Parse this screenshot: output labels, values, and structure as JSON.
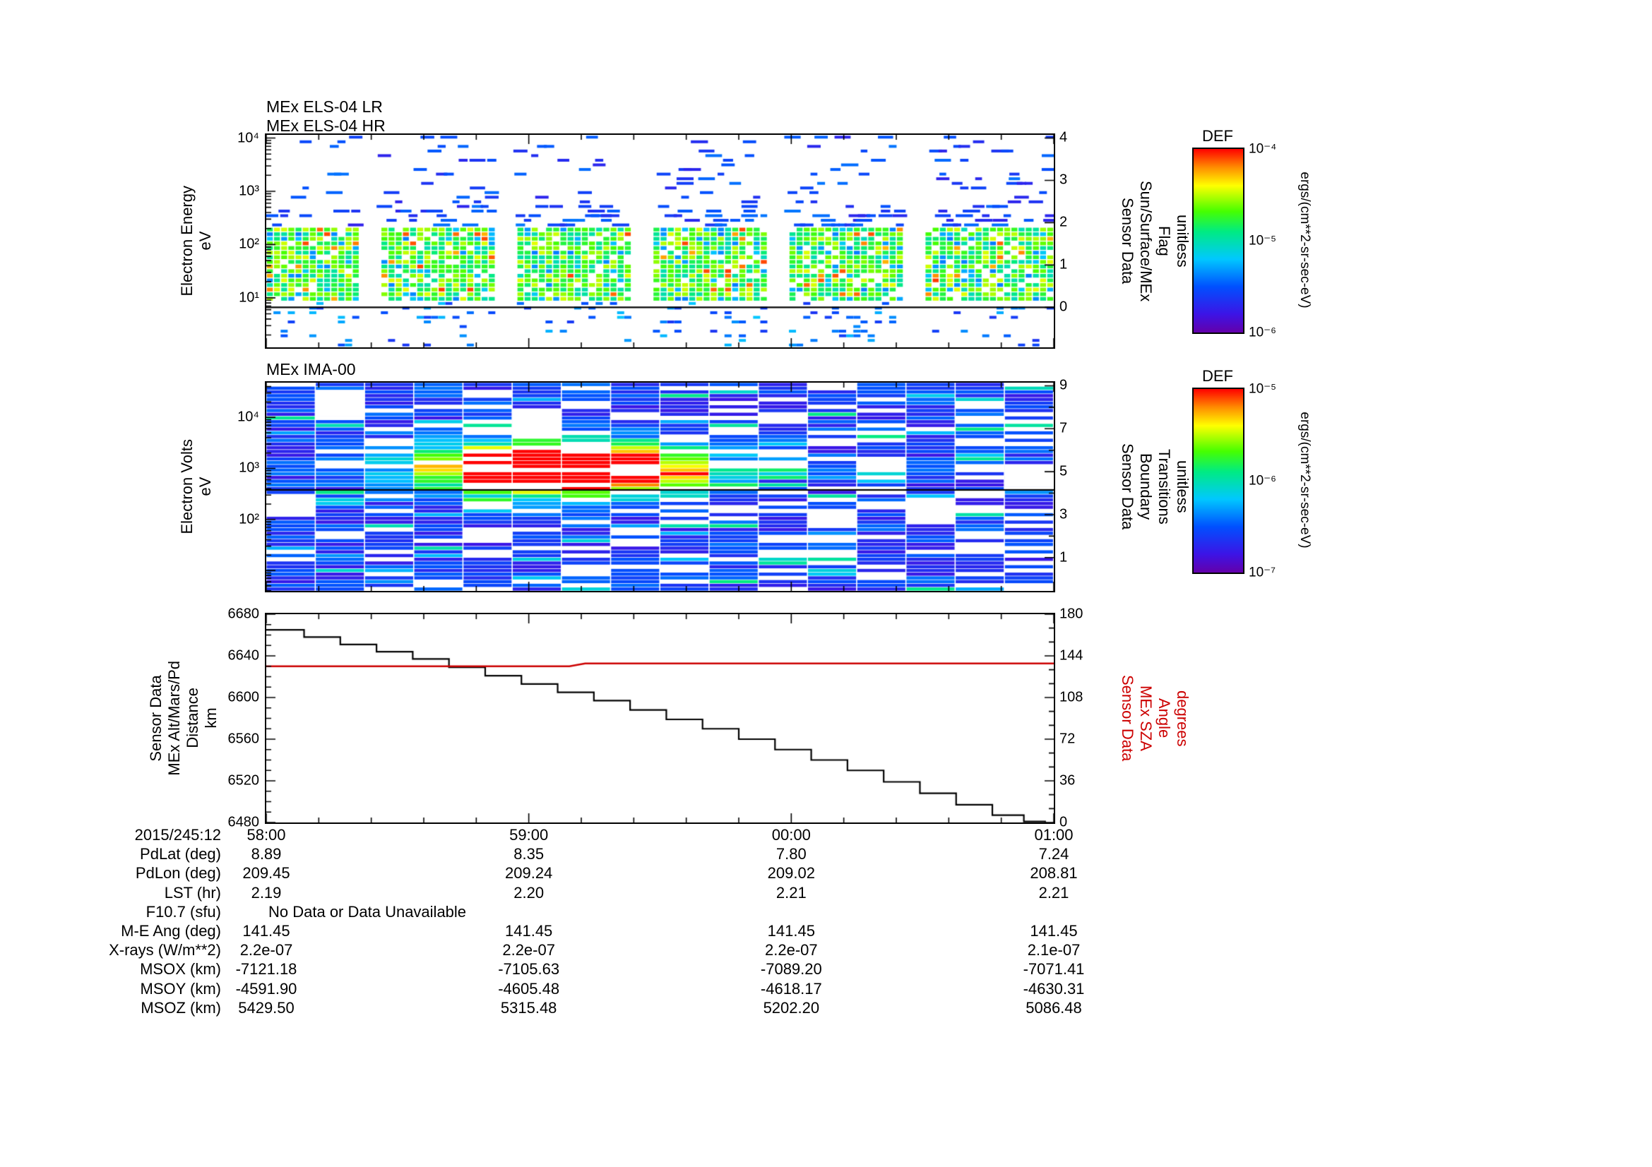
{
  "titles": {
    "els_lr": "MEx ELS-04 LR",
    "els_hr": "MEx ELS-04 HR",
    "ima": "MEx IMA-00"
  },
  "axis_labels": {
    "els_left": "Electron Energy\neV",
    "ima_left": "Electron Volts\neV",
    "alt_left": "Sensor Data\nMEx Alt/Mars/Pd\nDistance\nkm",
    "els_right": "Sensor Data\nSun/Surface/MEx\nFlag\nunitless",
    "ima_right": "Sensor Data\nBoundary\nTransitions\nunitless",
    "alt_right": "Sensor Data\nMEx SZA\nAngle\ndegrees"
  },
  "colors": {
    "background": "#ffffff",
    "frame": "#000000",
    "altitude_line": "#000000",
    "sza_line": "#cc0000"
  },
  "colorbars": [
    {
      "title": "DEF",
      "unit": "ergs/(cm**2-sr-sec-eV)",
      "tick_labels": [
        "10⁻⁴",
        "10⁻⁵",
        "10⁻⁶"
      ],
      "gradient": [
        "#ff0000 0%",
        "#ff8c00 10%",
        "#ffff00 20%",
        "#46ff00 34%",
        "#00eb82 45%",
        "#00c8ff 60%",
        "#0050ff 75%",
        "#3c14e6 90%",
        "#6400aa 100%"
      ]
    },
    {
      "title": "DEF",
      "unit": "ergs/(cm**2-sr-sec-eV)",
      "tick_labels": [
        "10⁻⁵",
        "10⁻⁶",
        "10⁻⁷"
      ],
      "gradient": [
        "#ff0000 0%",
        "#ff8c00 10%",
        "#ffff00 20%",
        "#46ff00 34%",
        "#00eb82 45%",
        "#00c8ff 60%",
        "#0050ff 75%",
        "#3c14e6 90%",
        "#6400aa 100%"
      ]
    }
  ],
  "chart_data": [
    {
      "type": "heatmap",
      "name": "els",
      "title": "MEx ELS-04 LR / MEx ELS-04 HR electron energy spectrogram",
      "x_ticks": [
        "58:00",
        "59:00",
        "00:00",
        "01:00"
      ],
      "x_start_label": "2015/245:12",
      "y_axis": {
        "scale": "log",
        "unit": "eV",
        "top_logE": 4.06,
        "bottom_logE": 0.07,
        "tick_labels": [
          {
            "text": "10⁴",
            "logE": 4
          },
          {
            "text": "10³",
            "logE": 3
          },
          {
            "text": "10²",
            "logE": 2
          },
          {
            "text": "10¹",
            "logE": 1
          }
        ]
      },
      "right_axis": {
        "label": "Sun/Surface/MEx Flag (unitless)",
        "top_value": 4.075,
        "bottom_value": -0.945,
        "tick_values": [
          4,
          3,
          2,
          1,
          0
        ]
      },
      "flag_line_value": 0,
      "intensity_unit": "ergs/(cm**2-sr-sec-eV)",
      "intensity_range_log10": [
        -6,
        -4
      ],
      "summary": "Dense green-yellow electron flux band between ~9 and ~200 eV with occasional orange-red patches; sparse blue dashes up to 10^4 eV and below ~7 eV; periodic white data gaps; black flag line at flag=0.",
      "render": {
        "seed": 42,
        "time_bins": 110,
        "energy_bins": 46,
        "gaps": [
          [
            0.122,
            0.148
          ],
          [
            0.295,
            0.318
          ],
          [
            0.468,
            0.492
          ],
          [
            0.64,
            0.664
          ],
          [
            0.812,
            0.836
          ]
        ],
        "band_logE": [
          0.95,
          2.33
        ],
        "band_fill": 0.88,
        "sparse_above_fill": 0.22,
        "sparse_high_fill": 0.07,
        "sparse_below_fill": 0.13
      }
    },
    {
      "type": "heatmap",
      "name": "ima",
      "title": "MEx IMA-00 ion spectrogram",
      "x_ticks": [
        "58:00",
        "59:00",
        "00:00",
        "01:00"
      ],
      "y_axis": {
        "scale": "log",
        "unit": "eV",
        "top_logE": 4.68,
        "bottom_logE": 0.6,
        "tick_labels": [
          {
            "text": "10⁴",
            "logE": 4
          },
          {
            "text": "10³",
            "logE": 3
          },
          {
            "text": "10²",
            "logE": 2
          }
        ]
      },
      "right_axis": {
        "label": "Boundary Transitions (unitless)",
        "top_value": 9.147,
        "bottom_value": -0.553,
        "tick_values": [
          9,
          7,
          5,
          3,
          1
        ]
      },
      "line_value": 4.15,
      "intensity_unit": "ergs/(cm**2-sr-sec-eV)",
      "intensity_range_log10": [
        -7,
        -5
      ],
      "summary": "Blocky blue-violet background flux in ~16 time columns with scattered white gaps; intense red-orange enhancement near 10^3 eV between ~12:58:45 and ~12:59:30 with yellow-green fringe; black horizontal line across panel.",
      "render": {
        "seed": 7,
        "time_cols": 16,
        "energy_rows": 56,
        "blob": {
          "t": 0.38,
          "logE": 3.0,
          "sigma_t": 0.105,
          "sigma_logE": 0.3,
          "amp": 1.9
        },
        "white_fraction": 0.12
      }
    },
    {
      "type": "line",
      "name": "alt_sza",
      "title": "MEx altitude and solar zenith angle",
      "x_ticks": [
        "58:00",
        "59:00",
        "00:00",
        "01:00"
      ],
      "x_unit": "fraction of window 12:58-13:01",
      "left_axis": {
        "label": "MEx Alt/Mars/Pd Distance (km)",
        "range": [
          6480,
          6680
        ],
        "tick_step": 40
      },
      "right_axis": {
        "label": "MEx SZA Angle (degrees)",
        "range": [
          0,
          180
        ],
        "tick_step": 36,
        "color": "#cc0000"
      },
      "series": [
        {
          "name": "altitude_km",
          "color": "#000000",
          "style": "steps",
          "axis": "left",
          "points": [
            [
              0.0,
              6665
            ],
            [
              0.048,
              6658
            ],
            [
              0.094,
              6651
            ],
            [
              0.14,
              6644
            ],
            [
              0.186,
              6637
            ],
            [
              0.232,
              6629
            ],
            [
              0.278,
              6621
            ],
            [
              0.324,
              6613
            ],
            [
              0.37,
              6605
            ],
            [
              0.416,
              6597
            ],
            [
              0.462,
              6588
            ],
            [
              0.508,
              6579
            ],
            [
              0.554,
              6570
            ],
            [
              0.6,
              6560
            ],
            [
              0.646,
              6550
            ],
            [
              0.692,
              6540
            ],
            [
              0.738,
              6530
            ],
            [
              0.784,
              6519
            ],
            [
              0.83,
              6508
            ],
            [
              0.876,
              6497
            ],
            [
              0.922,
              6487
            ],
            [
              0.962,
              6481
            ],
            [
              0.99,
              6481
            ]
          ]
        },
        {
          "name": "sza_deg",
          "color": "#cc0000",
          "style": "line",
          "axis": "right",
          "points": [
            [
              0.0,
              135.0
            ],
            [
              0.385,
              135.0
            ],
            [
              0.405,
              137.5
            ],
            [
              1.0,
              137.5
            ]
          ]
        }
      ]
    }
  ],
  "table": {
    "rows": [
      {
        "label": "2015/245:12",
        "values": [
          "58:00",
          "59:00",
          "00:00",
          "01:00"
        ]
      },
      {
        "label": "PdLat (deg)",
        "values": [
          "8.89",
          "8.35",
          "7.80",
          "7.24"
        ]
      },
      {
        "label": "PdLon (deg)",
        "values": [
          "209.45",
          "209.24",
          "209.02",
          "208.81"
        ]
      },
      {
        "label": "LST (hr)",
        "values": [
          "2.19",
          "2.20",
          "2.21",
          "2.21"
        ]
      },
      {
        "label": "F10.7 (sfu)",
        "span": true,
        "values": [
          "No Data or Data Unavailable"
        ]
      },
      {
        "label": "M-E Ang (deg)",
        "values": [
          "141.45",
          "141.45",
          "141.45",
          "141.45"
        ]
      },
      {
        "label": "X-rays (W/m**2)",
        "values": [
          "2.2e-07",
          "2.2e-07",
          "2.2e-07",
          "2.1e-07"
        ]
      },
      {
        "label": "MSOX (km)",
        "values": [
          "-7121.18",
          "-7105.63",
          "-7089.20",
          "-7071.41"
        ]
      },
      {
        "label": "MSOY (km)",
        "values": [
          "-4591.90",
          "-4605.48",
          "-4618.17",
          "-4630.31"
        ]
      },
      {
        "label": "MSOZ (km)",
        "values": [
          "5429.50",
          "5315.48",
          "5202.20",
          "5086.48"
        ]
      }
    ]
  }
}
